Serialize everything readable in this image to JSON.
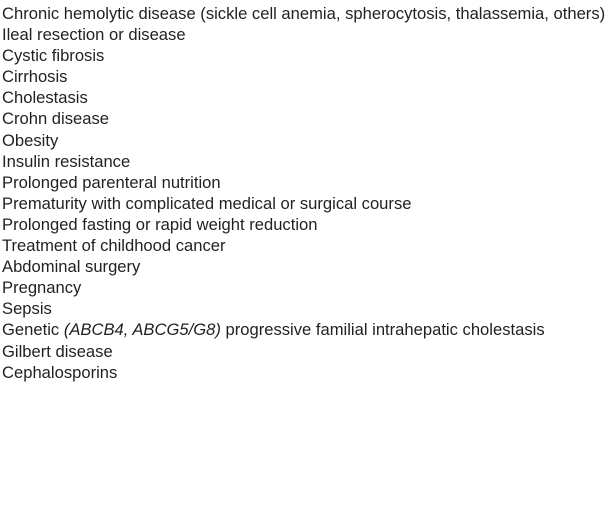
{
  "conditions": {
    "items": [
      {
        "text": "Chronic hemolytic disease (sickle cell anemia, spherocytosis, thalassemia, others)"
      },
      {
        "text": "Ileal resection or disease"
      },
      {
        "text": "Cystic fibrosis"
      },
      {
        "text": "Cirrhosis"
      },
      {
        "text": "Cholestasis"
      },
      {
        "text": "Crohn disease"
      },
      {
        "text": "Obesity"
      },
      {
        "text": "Insulin resistance"
      },
      {
        "text": "Prolonged parenteral nutrition"
      },
      {
        "text": "Prematurity with complicated medical or surgical course"
      },
      {
        "text": "Prolonged fasting or rapid weight reduction"
      },
      {
        "text": "Treatment of childhood cancer"
      },
      {
        "text": "Abdominal surgery"
      },
      {
        "text": "Pregnancy"
      },
      {
        "text": "Sepsis"
      },
      {
        "pre": "Genetic ",
        "italic": "(ABCB4, ABCG5/G8)",
        "post": " progressive familial intrahepatic cholestasis"
      },
      {
        "text": "Gilbert disease"
      },
      {
        "text": "Cephalosporins"
      }
    ]
  }
}
